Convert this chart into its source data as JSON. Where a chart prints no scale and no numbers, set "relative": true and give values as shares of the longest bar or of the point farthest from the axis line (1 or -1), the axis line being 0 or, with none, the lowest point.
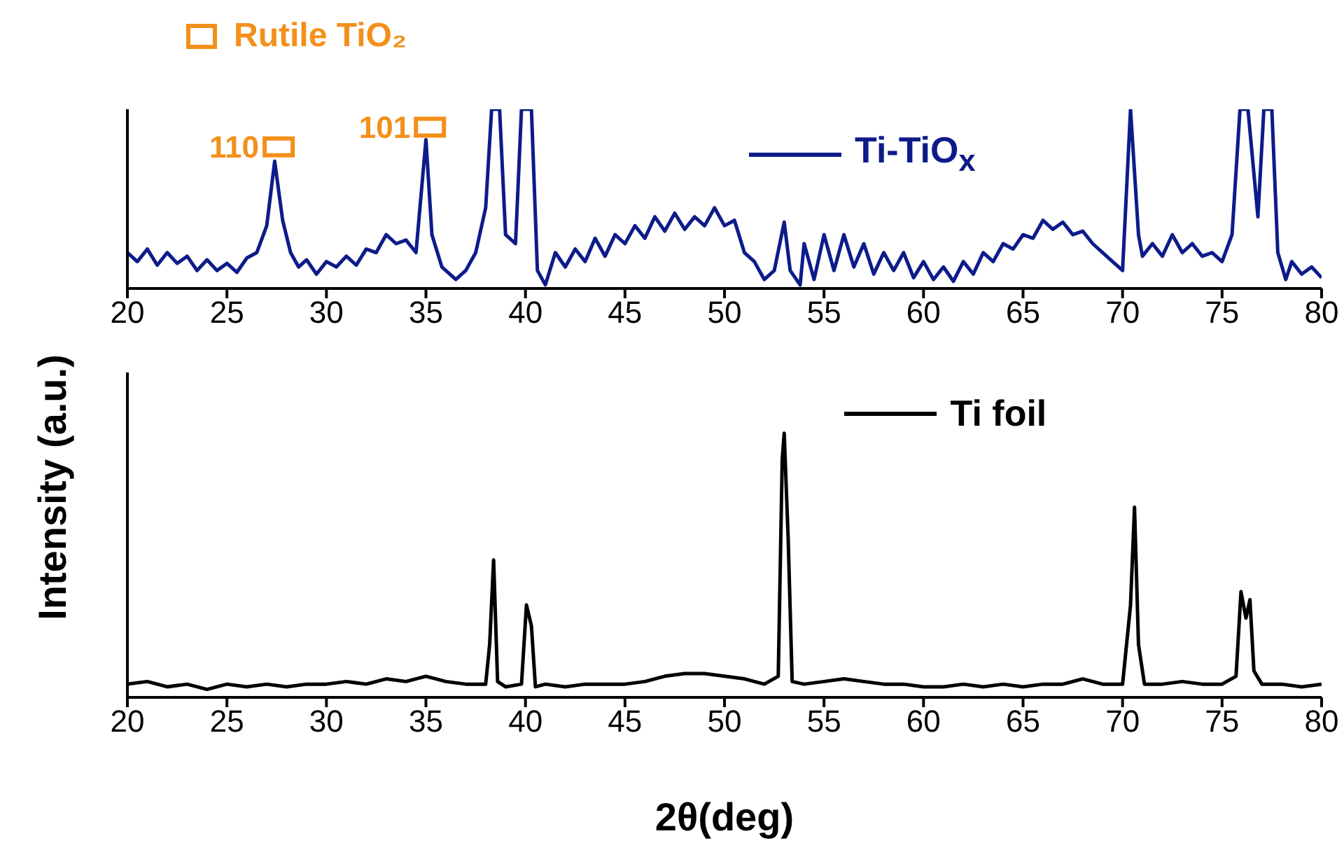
{
  "chart_data": [
    {
      "type": "line",
      "relative": true,
      "xlim": [
        20,
        80
      ],
      "xticks": [
        20,
        25,
        30,
        35,
        40,
        45,
        50,
        55,
        60,
        65,
        70,
        75,
        80
      ],
      "tick_labels": "x",
      "legend": "top",
      "marker": "none",
      "line_style": "solid",
      "annotations": [
        {
          "text": "110",
          "x": 27.6,
          "y": 0.79
        },
        {
          "text": "101",
          "x": 35.2,
          "y": 0.9
        }
      ],
      "series": [
        {
          "name": "Ti-TiO$_{x}$",
          "color": "#0d1b8a",
          "x": [
            20,
            20.5,
            21,
            21.5,
            22,
            22.5,
            23,
            23.5,
            24,
            24.5,
            25,
            25.5,
            26,
            26.5,
            27,
            27.4,
            27.8,
            28.2,
            28.6,
            29,
            29.5,
            30,
            30.5,
            31,
            31.5,
            32,
            32.5,
            33,
            33.5,
            34,
            34.5,
            35,
            35.3,
            35.8,
            36.5,
            37,
            37.5,
            38,
            38.3,
            38.7,
            39,
            39.5,
            39.8,
            40.3,
            40.6,
            41,
            41.5,
            42,
            42.5,
            43,
            43.5,
            44,
            44.5,
            45,
            45.5,
            46,
            46.5,
            47,
            47.5,
            48,
            48.5,
            49,
            49.5,
            50,
            50.5,
            51,
            51.5,
            52,
            52.5,
            53,
            53.3,
            53.8,
            54,
            54.5,
            55,
            55.5,
            56,
            56.5,
            57,
            57.5,
            58,
            58.5,
            59,
            59.5,
            60,
            60.5,
            61,
            61.5,
            62,
            62.5,
            63,
            63.5,
            64,
            64.5,
            65,
            65.5,
            66,
            66.5,
            67,
            67.5,
            68,
            68.5,
            69,
            69.5,
            70,
            70.4,
            70.8,
            71,
            71.5,
            72,
            72.5,
            73,
            73.5,
            74,
            74.5,
            75,
            75.5,
            75.9,
            76.3,
            76.8,
            77.1,
            77.5,
            77.8,
            78.2,
            78.5,
            79,
            79.5,
            80
          ],
          "values": [
            0.2,
            0.15,
            0.22,
            0.13,
            0.2,
            0.14,
            0.18,
            0.1,
            0.16,
            0.1,
            0.14,
            0.09,
            0.17,
            0.2,
            0.35,
            0.71,
            0.38,
            0.2,
            0.12,
            0.16,
            0.08,
            0.15,
            0.12,
            0.18,
            0.13,
            0.22,
            0.2,
            0.3,
            0.25,
            0.27,
            0.2,
            0.83,
            0.3,
            0.12,
            0.05,
            0.1,
            0.2,
            0.45,
            1,
            1,
            0.3,
            0.25,
            1,
            1,
            0.1,
            0.02,
            0.2,
            0.12,
            0.22,
            0.15,
            0.28,
            0.18,
            0.3,
            0.25,
            0.35,
            0.28,
            0.4,
            0.32,
            0.42,
            0.33,
            0.4,
            0.35,
            0.45,
            0.35,
            0.38,
            0.2,
            0.15,
            0.05,
            0.1,
            0.37,
            0.1,
            0.02,
            0.25,
            0.05,
            0.3,
            0.1,
            0.3,
            0.12,
            0.25,
            0.08,
            0.2,
            0.1,
            0.2,
            0.06,
            0.15,
            0.05,
            0.12,
            0.04,
            0.15,
            0.08,
            0.2,
            0.15,
            0.25,
            0.22,
            0.3,
            0.28,
            0.38,
            0.33,
            0.37,
            0.3,
            0.32,
            0.25,
            0.2,
            0.15,
            0.1,
            1,
            0.3,
            0.18,
            0.25,
            0.18,
            0.3,
            0.2,
            0.25,
            0.18,
            0.2,
            0.15,
            0.3,
            1,
            1,
            0.4,
            1,
            1,
            0.2,
            0.05,
            0.15,
            0.08,
            0.12,
            0.06
          ]
        },
        {
          "type": "scatter",
          "name": "Rutile TiO₂",
          "color": "#f39019",
          "marker": "square",
          "x": [
            27.6,
            35.2
          ],
          "values": [
            0.79,
            0.9
          ]
        }
      ]
    },
    {
      "type": "line",
      "relative": true,
      "xlim": [
        20,
        80
      ],
      "xticks": [
        20,
        25,
        30,
        35,
        40,
        45,
        50,
        55,
        60,
        65,
        70,
        75,
        80
      ],
      "xlabel": "2θ(deg)",
      "ylabel": "Intensity (a.u.)",
      "legend": "top right",
      "marker": "none",
      "line_style": "solid",
      "series": [
        {
          "name": "Ti foil",
          "color": "#000000",
          "x": [
            20,
            21,
            22,
            23,
            24,
            25,
            26,
            27,
            28,
            29,
            30,
            31,
            32,
            33,
            34,
            35,
            36,
            37,
            38,
            38.2,
            38.4,
            38.6,
            39,
            39.8,
            40.05,
            40.3,
            40.5,
            41,
            42,
            43,
            44,
            45,
            46,
            47,
            48,
            49,
            50,
            51,
            52,
            52.7,
            52.9,
            53,
            53.2,
            53.4,
            54,
            55,
            56,
            57,
            58,
            59,
            60,
            61,
            62,
            63,
            64,
            65,
            66,
            67,
            68,
            69,
            70,
            70.4,
            70.6,
            70.8,
            71.1,
            72,
            73,
            74,
            75,
            75.7,
            75.95,
            76.2,
            76.4,
            76.6,
            77,
            78,
            79,
            80
          ],
          "values": [
            0.05,
            0.06,
            0.04,
            0.05,
            0.03,
            0.05,
            0.04,
            0.05,
            0.04,
            0.05,
            0.05,
            0.06,
            0.05,
            0.07,
            0.06,
            0.08,
            0.06,
            0.05,
            0.05,
            0.2,
            0.52,
            0.06,
            0.04,
            0.05,
            0.35,
            0.27,
            0.04,
            0.05,
            0.04,
            0.05,
            0.05,
            0.05,
            0.06,
            0.08,
            0.09,
            0.09,
            0.08,
            0.07,
            0.05,
            0.08,
            0.9,
            1,
            0.6,
            0.06,
            0.05,
            0.06,
            0.07,
            0.06,
            0.05,
            0.05,
            0.04,
            0.04,
            0.05,
            0.04,
            0.05,
            0.04,
            0.05,
            0.05,
            0.07,
            0.05,
            0.05,
            0.35,
            0.72,
            0.2,
            0.05,
            0.05,
            0.06,
            0.05,
            0.05,
            0.08,
            0.4,
            0.3,
            0.37,
            0.1,
            0.05,
            0.05,
            0.04,
            0.05
          ]
        }
      ]
    }
  ]
}
